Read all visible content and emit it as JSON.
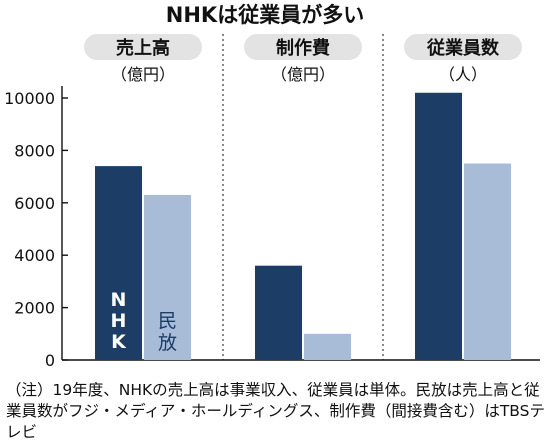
{
  "chart_data": {
    "type": "bar",
    "title": "NHKは従業員が多い",
    "categories": [
      {
        "label": "売上高",
        "unit": "（億円）"
      },
      {
        "label": "制作費",
        "unit": "（億円）"
      },
      {
        "label": "従業員数",
        "unit": "（人）"
      }
    ],
    "series": [
      {
        "name": "NHK",
        "color": "#1b3d66",
        "values": [
          7400,
          3600,
          10200
        ]
      },
      {
        "name": "民放",
        "color": "#a8bcd8",
        "values": [
          6300,
          1000,
          7500
        ]
      }
    ],
    "ylim": [
      0,
      10500
    ],
    "yticks": [
      "0",
      "2000",
      "4000",
      "6000",
      "8000",
      "10000"
    ],
    "grid": false,
    "legend": "inside-first-group"
  },
  "note": "（注）19年度、NHKの売上高は事業収入、従業員は単体。民放は売上高と従業員数がフジ・メディア・ホールディングス、制作費（間接費含む）はTBSテレビ"
}
